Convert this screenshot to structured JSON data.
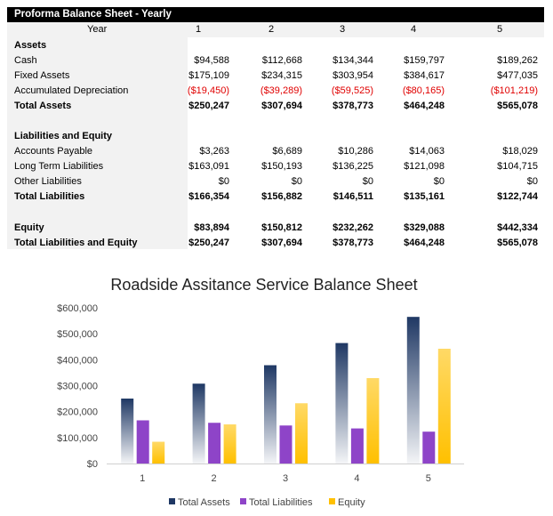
{
  "table": {
    "title": "Proforma Balance Sheet - Yearly",
    "year_label": "Year",
    "years": [
      "1",
      "2",
      "3",
      "4",
      "5"
    ],
    "rows": [
      {
        "label": "Assets",
        "bold": true,
        "values": []
      },
      {
        "label": "Cash",
        "values": [
          "$94,588",
          "$112,668",
          "$134,344",
          "$159,797",
          "$189,262"
        ]
      },
      {
        "label": "Fixed Assets",
        "values": [
          "$175,109",
          "$234,315",
          "$303,954",
          "$384,617",
          "$477,035"
        ]
      },
      {
        "label": "Accumulated Depreciation",
        "negative": true,
        "values": [
          "($19,450)",
          "($39,289)",
          "($59,525)",
          "($80,165)",
          "($101,219)"
        ]
      },
      {
        "label": "Total Assets",
        "bold": true,
        "values": [
          "$250,247",
          "$307,694",
          "$378,773",
          "$464,248",
          "$565,078"
        ]
      },
      {
        "label": "",
        "values": []
      },
      {
        "label": "Liabilities and Equity",
        "bold": true,
        "values": []
      },
      {
        "label": "Accounts Payable",
        "values": [
          "$3,263",
          "$6,689",
          "$10,286",
          "$14,063",
          "$18,029"
        ]
      },
      {
        "label": "Long Term Liabilities",
        "values": [
          "$163,091",
          "$150,193",
          "$136,225",
          "$121,098",
          "$104,715"
        ]
      },
      {
        "label": "Other Liabilities",
        "values": [
          "$0",
          "$0",
          "$0",
          "$0",
          "$0"
        ]
      },
      {
        "label": "Total Liabilities",
        "bold": true,
        "values": [
          "$166,354",
          "$156,882",
          "$146,511",
          "$135,161",
          "$122,744"
        ]
      },
      {
        "label": "",
        "values": []
      },
      {
        "label": "Equity",
        "bold": true,
        "values": [
          "$83,894",
          "$150,812",
          "$232,262",
          "$329,088",
          "$442,334"
        ]
      },
      {
        "label": "Total Liabilities and Equity",
        "bold": true,
        "values": [
          "$250,247",
          "$307,694",
          "$378,773",
          "$464,248",
          "$565,078"
        ]
      }
    ]
  },
  "chart_data": {
    "type": "bar",
    "title": "Roadside Assitance Service Balance Sheet",
    "categories": [
      "1",
      "2",
      "3",
      "4",
      "5"
    ],
    "ylim": [
      0,
      600000
    ],
    "yticks": [
      "$0",
      "$100,000",
      "$200,000",
      "$300,000",
      "$400,000",
      "$500,000",
      "$600,000"
    ],
    "grid": false,
    "legend": "bottom",
    "series": [
      {
        "name": "Total Assets",
        "values": [
          250247,
          307694,
          378773,
          464248,
          565078
        ],
        "color": "#1f3864"
      },
      {
        "name": "Total Liabilities",
        "values": [
          166354,
          156882,
          146511,
          135161,
          122744
        ],
        "color": "#8e44c8"
      },
      {
        "name": "Equity",
        "values": [
          83894,
          150812,
          232262,
          329088,
          442334
        ],
        "color": "#ffc000"
      }
    ]
  }
}
